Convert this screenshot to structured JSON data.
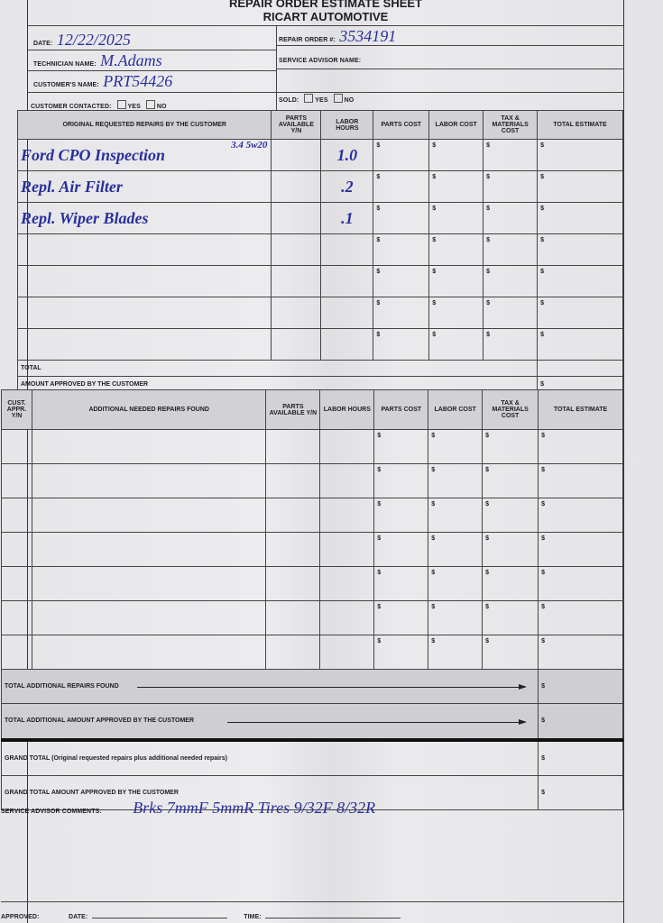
{
  "header": {
    "title": "REPAIR ORDER ESTIMATE SHEET",
    "company": "RICART AUTOMOTIVE"
  },
  "fields": {
    "date_label": "DATE:",
    "date_value": "12/22/2025",
    "technician_label": "TECHNICIAN NAME:",
    "technician_value": "M.Adams",
    "customer_label": "CUSTOMER'S NAME:",
    "customer_value": "PRT54426",
    "contacted_label": "CUSTOMER CONTACTED:",
    "yes": "YES",
    "no": "NO",
    "repair_order_label": "REPAIR ORDER #:",
    "repair_order_value": "3534191",
    "advisor_label": "SERVICE ADVISOR NAME:",
    "sold_label": "SOLD:"
  },
  "original": {
    "headers": [
      "ORIGINAL REQUESTED REPAIRS BY THE CUSTOMER",
      "PARTS AVAILABLE Y/N",
      "LABOR HOURS",
      "PARTS COST",
      "LABOR COST",
      "TAX & MATERIALS COST",
      "TOTAL ESTIMATE"
    ],
    "rows": [
      {
        "desc": "Ford CPO Inspection",
        "note": "3.4  5w20",
        "hours": "1.0"
      },
      {
        "desc": "Repl. Air Filter",
        "note": "",
        "hours": ".2"
      },
      {
        "desc": "Repl. Wiper Blades",
        "note": "",
        "hours": ".1"
      },
      {
        "desc": "",
        "note": "",
        "hours": ""
      },
      {
        "desc": "",
        "note": "",
        "hours": ""
      },
      {
        "desc": "",
        "note": "",
        "hours": ""
      },
      {
        "desc": "",
        "note": "",
        "hours": ""
      }
    ],
    "currency": "$",
    "total_label": "TOTAL",
    "approved_label": "AMOUNT APPROVED BY THE CUSTOMER"
  },
  "additional": {
    "headers": [
      "CUST. APPR. Y/N",
      "ADDITIONAL NEEDED REPAIRS FOUND",
      "PARTS AVAILABLE Y/N",
      "LABOR HOURS",
      "PARTS COST",
      "LABOR COST",
      "TAX & MATERIALS COST",
      "TOTAL ESTIMATE"
    ],
    "row_count": 7
  },
  "totals": {
    "additional_found": "TOTAL ADDITIONAL REPAIRS FOUND",
    "additional_approved": "TOTAL ADDITIONAL AMOUNT APPROVED BY THE CUSTOMER",
    "grand_total": "GRAND TOTAL (Original requested repairs plus additional needed repairs)",
    "grand_approved": "GRAND TOTAL AMOUNT APPROVED BY THE CUSTOMER"
  },
  "comments": {
    "label": "SERVICE ADVISOR COMMENTS:",
    "value": "Brks 7mmF 5mmR   Tires 9/32F 8/32R"
  },
  "footer": {
    "approved_label": "APPROVED:",
    "date_label": "DATE:",
    "time_label": "TIME:"
  }
}
